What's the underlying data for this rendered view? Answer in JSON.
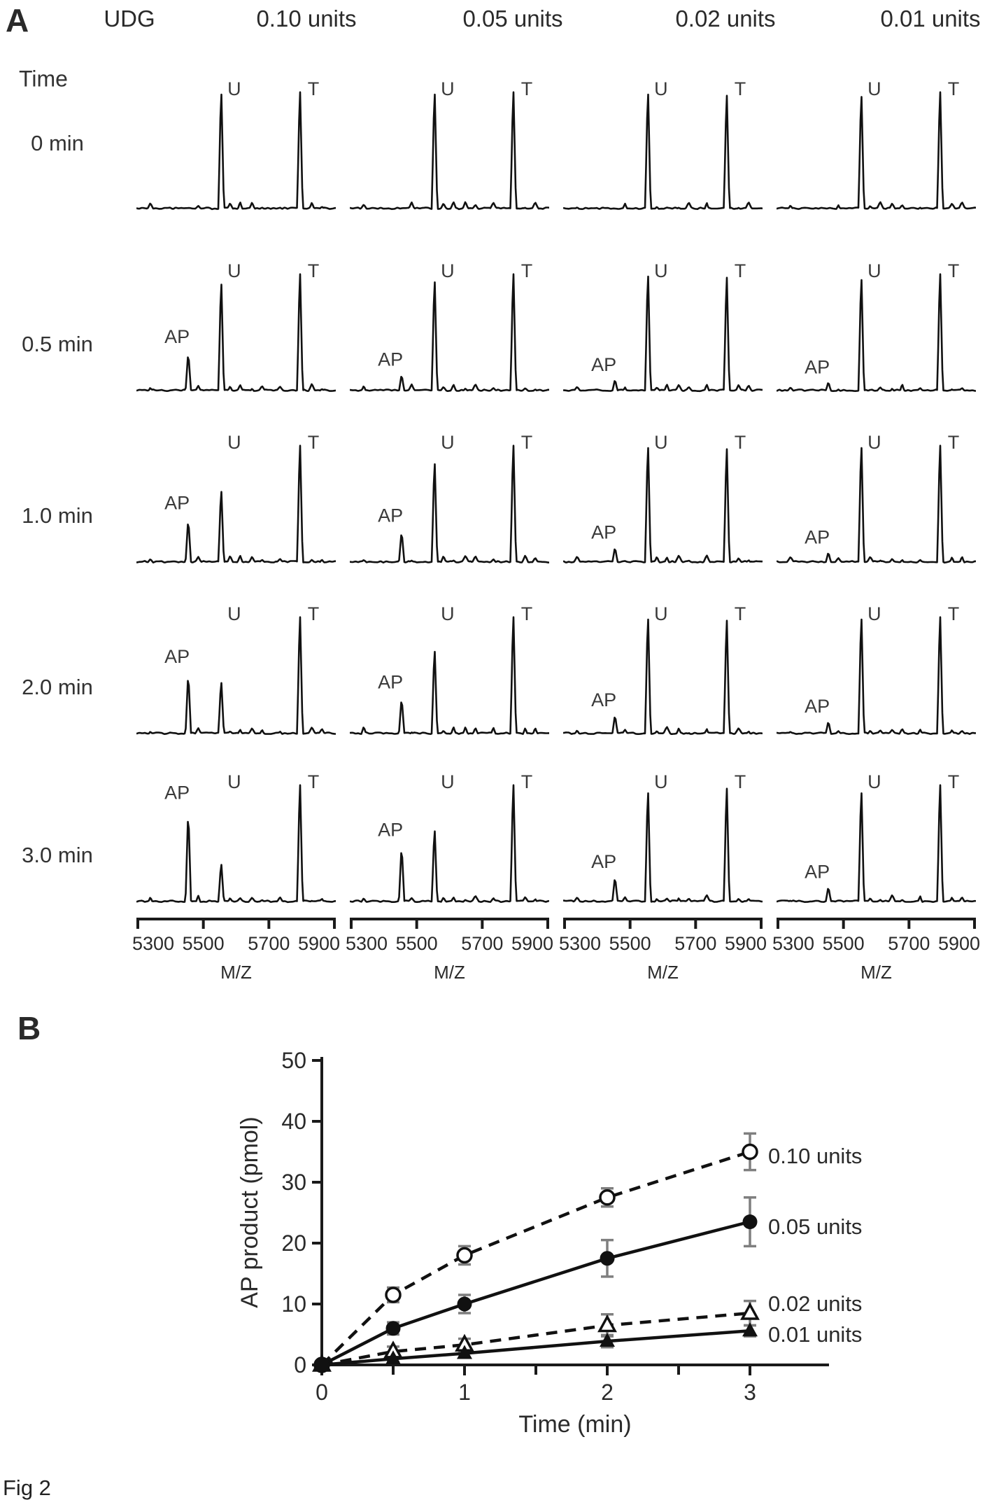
{
  "figure": {
    "panel_a_label": "A",
    "panel_b_label": "B",
    "caption": "Fig 2"
  },
  "panelA": {
    "udg_label": "UDG",
    "row_header": "Time",
    "columns": [
      {
        "label": "0.10 units"
      },
      {
        "label": "0.05 units"
      },
      {
        "label": "0.02 units"
      },
      {
        "label": "0.01 units"
      }
    ],
    "rows": [
      {
        "time_label": "0 min"
      },
      {
        "time_label": "0.5 min"
      },
      {
        "time_label": "1.0 min"
      },
      {
        "time_label": "2.0 min"
      },
      {
        "time_label": "3.0 min"
      }
    ],
    "peak_labels": {
      "ap": "AP",
      "u": "U",
      "t": "T"
    },
    "xaxis": {
      "ticks": [
        "5300",
        "5500",
        "5700",
        "5900"
      ],
      "label": "M/Z"
    },
    "spectra": [
      {
        "time": "0 min",
        "cells": [
          {
            "ap": 0,
            "u": 1.0,
            "t": 1.0
          },
          {
            "ap": 0,
            "u": 1.0,
            "t": 1.0
          },
          {
            "ap": 0,
            "u": 1.0,
            "t": 0.97
          },
          {
            "ap": 0,
            "u": 0.98,
            "t": 1.0
          }
        ]
      },
      {
        "time": "0.5 min",
        "cells": [
          {
            "ap": 0.32,
            "u": 0.93,
            "t": 1.0
          },
          {
            "ap": 0.14,
            "u": 0.95,
            "t": 1.0
          },
          {
            "ap": 0.1,
            "u": 1.0,
            "t": 0.97
          },
          {
            "ap": 0.08,
            "u": 0.97,
            "t": 1.0
          }
        ]
      },
      {
        "time": "1.0 min",
        "cells": [
          {
            "ap": 0.36,
            "u": 0.62,
            "t": 1.0
          },
          {
            "ap": 0.26,
            "u": 0.86,
            "t": 1.0
          },
          {
            "ap": 0.13,
            "u": 1.0,
            "t": 0.97
          },
          {
            "ap": 0.09,
            "u": 1.0,
            "t": 1.0
          }
        ]
      },
      {
        "time": "2.0 min",
        "cells": [
          {
            "ap": 0.5,
            "u": 0.45,
            "t": 1.0
          },
          {
            "ap": 0.3,
            "u": 0.72,
            "t": 1.0
          },
          {
            "ap": 0.16,
            "u": 1.0,
            "t": 0.97
          },
          {
            "ap": 0.11,
            "u": 1.0,
            "t": 1.0
          }
        ]
      },
      {
        "time": "3.0 min",
        "cells": [
          {
            "ap": 0.75,
            "u": 0.33,
            "t": 1.0
          },
          {
            "ap": 0.46,
            "u": 0.62,
            "t": 1.0
          },
          {
            "ap": 0.21,
            "u": 0.95,
            "t": 0.97
          },
          {
            "ap": 0.13,
            "u": 0.95,
            "t": 1.0
          }
        ]
      }
    ]
  },
  "chart_data": {
    "type": "line",
    "title": "",
    "xlabel": "Time (min)",
    "ylabel": "AP product (pmol)",
    "xlim": [
      0,
      3.5
    ],
    "ylim": [
      0,
      50
    ],
    "xticks": [
      0,
      1,
      2,
      3
    ],
    "yticks": [
      0,
      10,
      20,
      30,
      40,
      50
    ],
    "minor_xticks": [
      0.5,
      1.5,
      2.5
    ],
    "grid": false,
    "legend_position": "right-of-line-ends",
    "x": [
      0,
      0.5,
      1,
      2,
      3
    ],
    "series": [
      {
        "name": "0.10 units",
        "marker": "open-circle",
        "line": "dashed",
        "color": "#111111",
        "error_color": "#7f7f7f",
        "values": [
          0,
          11.5,
          18,
          27.5,
          35
        ],
        "errors": [
          0,
          1.2,
          1.5,
          1.5,
          3
        ]
      },
      {
        "name": "0.05 units",
        "marker": "filled-circle",
        "line": "solid",
        "color": "#111111",
        "error_color": "#7f7f7f",
        "values": [
          0,
          6,
          10,
          17.5,
          23.5
        ],
        "errors": [
          0,
          1.0,
          1.5,
          3,
          4
        ]
      },
      {
        "name": "0.02 units",
        "marker": "open-triangle",
        "line": "dashed",
        "color": "#111111",
        "error_color": "#7f7f7f",
        "values": [
          0,
          2.2,
          3.3,
          6.5,
          8.5
        ],
        "errors": [
          0,
          0.8,
          1.0,
          1.8,
          2
        ]
      },
      {
        "name": "0.01 units",
        "marker": "filled-triangle",
        "line": "solid",
        "color": "#111111",
        "error_color": "#7f7f7f",
        "values": [
          0,
          1.0,
          1.9,
          3.9,
          5.6
        ],
        "errors": [
          0,
          0.5,
          0.7,
          1.0,
          0.9
        ]
      }
    ]
  }
}
